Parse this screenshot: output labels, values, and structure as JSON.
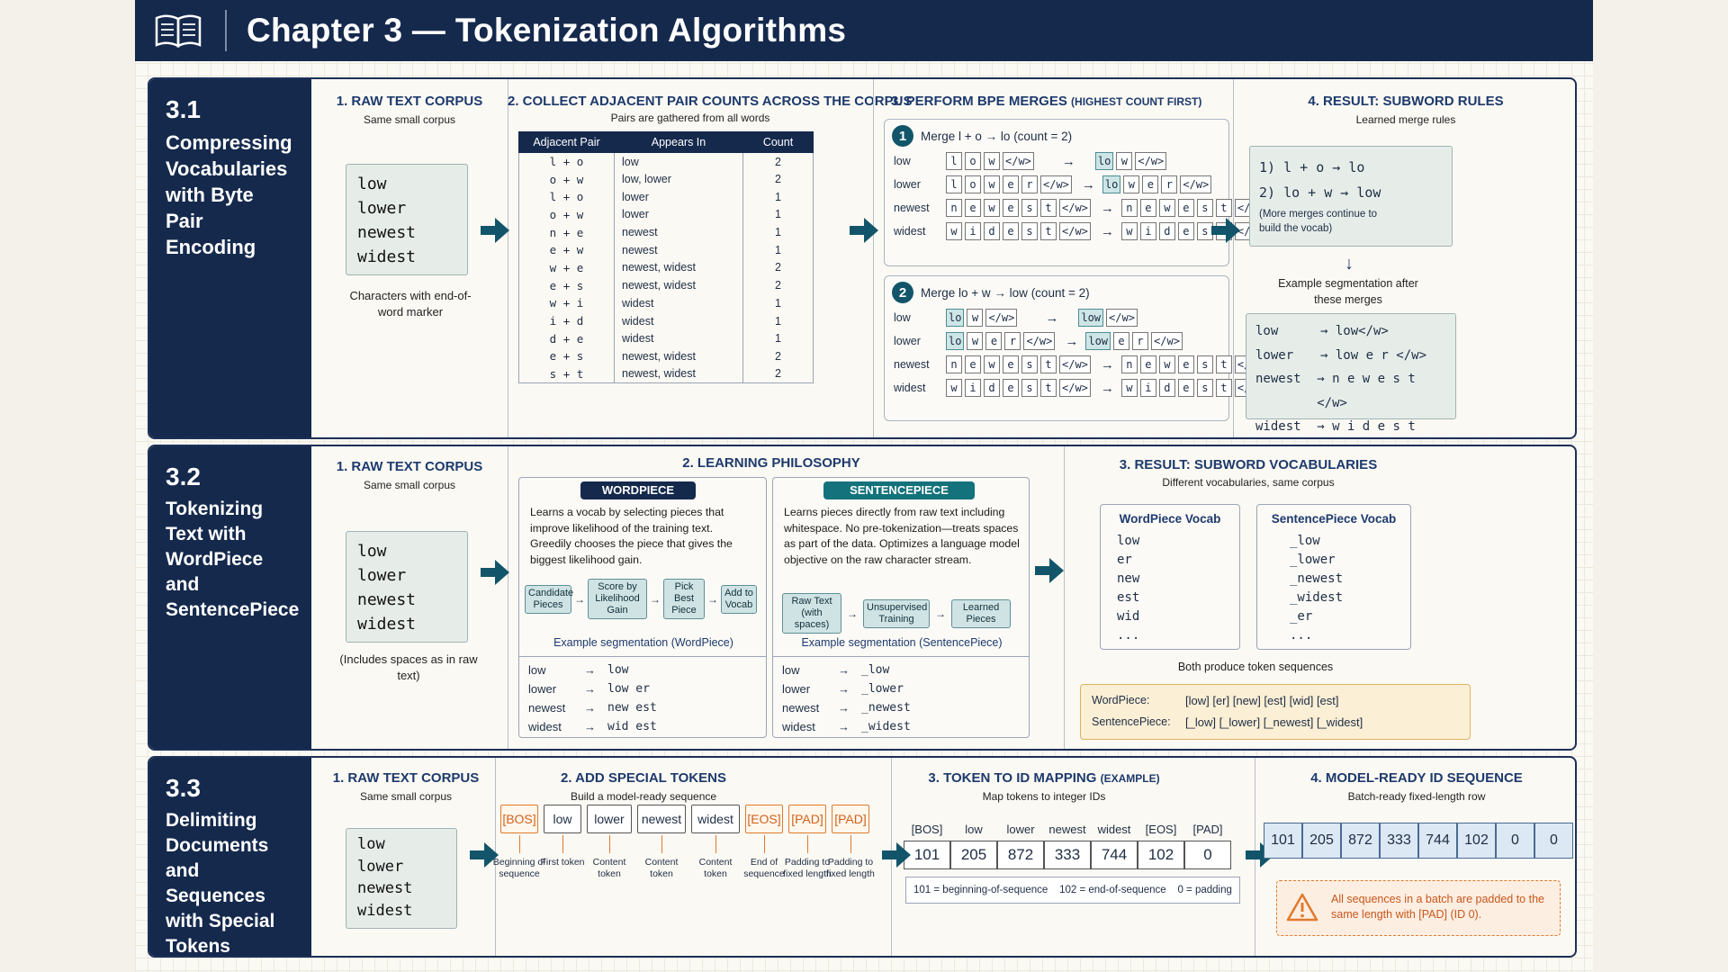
{
  "header": {
    "title": "Chapter 3 — Tokenization Algorithms",
    "icon": "book-icon"
  },
  "s1": {
    "num": "3.1",
    "title": "Compressing Vocabularies with Byte Pair Encoding",
    "c1": {
      "head": "1. RAW TEXT CORPUS",
      "sub": "Same small corpus",
      "words": [
        "low",
        "lower",
        "newest",
        "widest"
      ],
      "note": "Characters with end-of-word marker"
    },
    "c2": {
      "head": "2. COLLECT ADJACENT PAIR COUNTS ACROSS THE CORPUS",
      "sub": "Pairs are gathered from all words",
      "cols": [
        "Adjacent Pair",
        "Appears In",
        "Count"
      ],
      "rows": [
        [
          "l + o",
          "low",
          "2"
        ],
        [
          "o + w",
          "low, lower",
          "2"
        ],
        [
          "l + o",
          "lower",
          "1"
        ],
        [
          "o + w",
          "lower",
          "1"
        ],
        [
          "n + e",
          "newest",
          "1"
        ],
        [
          "e + w",
          "newest",
          "1"
        ],
        [
          "w + e",
          "newest, widest",
          "2"
        ],
        [
          "e + s",
          "newest, widest",
          "2"
        ],
        [
          "w + i",
          "widest",
          "1"
        ],
        [
          "i + d",
          "widest",
          "1"
        ],
        [
          "d + e",
          "widest",
          "1"
        ],
        [
          "e + s",
          "newest, widest",
          "2"
        ],
        [
          "s + t",
          "newest, widest",
          "2"
        ]
      ]
    },
    "c3": {
      "head": "3. PERFORM BPE MERGES",
      "head_small": "(HIGHEST COUNT FIRST)",
      "m1": {
        "n": "1",
        "label": "Merge l + o → lo",
        "count": "(count = 2)"
      },
      "m2": {
        "n": "2",
        "label": "Merge lo + w → low",
        "count": "(count = 2)"
      },
      "words": [
        "low",
        "lower",
        "newest",
        "widest"
      ],
      "arrow": "→"
    },
    "c4": {
      "head": "4. RESULT: SUBWORD RULES",
      "sub": "Learned merge rules",
      "r1": "1) l + o → lo",
      "r2": "2) lo + w → low",
      "more": "(More merges continue to build the vocab)",
      "example": "Example segmentation after these merges",
      "seg": [
        [
          "low",
          "→ low</w>"
        ],
        [
          "lower",
          "→ low e r </w>"
        ],
        [
          "newest",
          "→ n e w e s t </w>"
        ],
        [
          "widest",
          "→ w i d e s t </w>"
        ]
      ]
    }
  },
  "s2": {
    "num": "3.2",
    "title": "Tokenizing Text with WordPiece and SentencePiece",
    "c1": {
      "head": "1. RAW TEXT CORPUS",
      "sub": "Same small corpus",
      "words": [
        "low",
        "lower",
        "newest",
        "widest"
      ],
      "note": "(Includes spaces as in raw text)"
    },
    "c2": {
      "head": "2. LEARNING PHILOSOPHY",
      "wp": {
        "badge": "WORDPIECE",
        "text": "Learns a vocab by selecting pieces that improve likelihood of the training text. Greedily chooses the piece that gives the biggest likelihood gain.",
        "flow": [
          "Candidate Pieces",
          "Score by Likelihood Gain",
          "Pick Best Piece",
          "Add to Vocab"
        ],
        "seg_label": "Example segmentation (WordPiece)",
        "seg": [
          [
            "low",
            "→",
            "low"
          ],
          [
            "lower",
            "→",
            "low er"
          ],
          [
            "newest",
            "→",
            "new est"
          ],
          [
            "widest",
            "→",
            "wid est"
          ]
        ]
      },
      "sp": {
        "badge": "SENTENCEPIECE",
        "text": "Learns pieces directly from raw text including whitespace. No pre-tokenization—treats spaces as part of the data. Optimizes a language model objective on the raw character stream.",
        "flow": [
          "Raw Text (with spaces)",
          "Unsupervised Training",
          "Learned Pieces"
        ],
        "seg_label": "Example segmentation (SentencePiece)",
        "seg": [
          [
            "low",
            "→",
            "_low"
          ],
          [
            "lower",
            "→",
            "_lower"
          ],
          [
            "newest",
            "→",
            "_newest"
          ],
          [
            "widest",
            "→",
            "_widest"
          ]
        ]
      }
    },
    "c3": {
      "head": "3. RESULT: SUBWORD VOCABULARIES",
      "sub": "Different vocabularies, same corpus",
      "wpv": {
        "title": "WordPiece Vocab",
        "items": [
          "low",
          "er",
          "new",
          "est",
          "wid",
          "..."
        ]
      },
      "spv": {
        "title": "SentencePiece Vocab",
        "items": [
          "_low",
          "_lower",
          "_newest",
          "_widest",
          "_er",
          "..."
        ]
      },
      "both": "Both produce token sequences",
      "wp_lbl": "WordPiece:",
      "wp_seq": "[low] [er] [new] [est] [wid] [est]",
      "sp_lbl": "SentencePiece:",
      "sp_seq": "[_low] [_lower] [_newest] [_widest]"
    }
  },
  "s3": {
    "num": "3.3",
    "title": "Delimiting Documents and Sequences with Special Tokens",
    "c1": {
      "head": "1. RAW TEXT CORPUS",
      "sub": "Same small corpus",
      "words": [
        "low",
        "lower",
        "newest",
        "widest"
      ]
    },
    "c2": {
      "head": "2. ADD SPECIAL TOKENS",
      "sub": "Build a model-ready sequence",
      "tokens": [
        {
          "t": "[BOS]",
          "l": "Beginning of sequence"
        },
        {
          "t": "low",
          "l": "First token"
        },
        {
          "t": "lower",
          "l": "Content token"
        },
        {
          "t": "newest",
          "l": "Content token"
        },
        {
          "t": "widest",
          "l": "Content token"
        },
        {
          "t": "[EOS]",
          "l": "End of sequence"
        },
        {
          "t": "[PAD]",
          "l": "Padding to fixed length"
        },
        {
          "t": "[PAD]",
          "l": "Padding to fixed length"
        }
      ]
    },
    "c3": {
      "head": "3. TOKEN TO ID MAPPING",
      "head_small": "(EXAMPLE)",
      "sub": "Map tokens to integer IDs",
      "toks": [
        "[BOS]",
        "low",
        "lower",
        "newest",
        "widest",
        "[EOS]",
        "[PAD]"
      ],
      "ids": [
        "101",
        "205",
        "872",
        "333",
        "744",
        "102",
        "0"
      ],
      "legend": "101 = beginning-of-sequence    102 = end-of-sequence    0 = padding"
    },
    "c4": {
      "head": "4. MODEL-READY ID SEQUENCE",
      "sub": "Batch-ready fixed-length row",
      "ids": [
        "101",
        "205",
        "872",
        "333",
        "744",
        "102",
        "0",
        "0"
      ],
      "warn": "All sequences in a batch are padded to the same length with [PAD] (ID 0).",
      "warn_icon": "warning-icon"
    }
  }
}
